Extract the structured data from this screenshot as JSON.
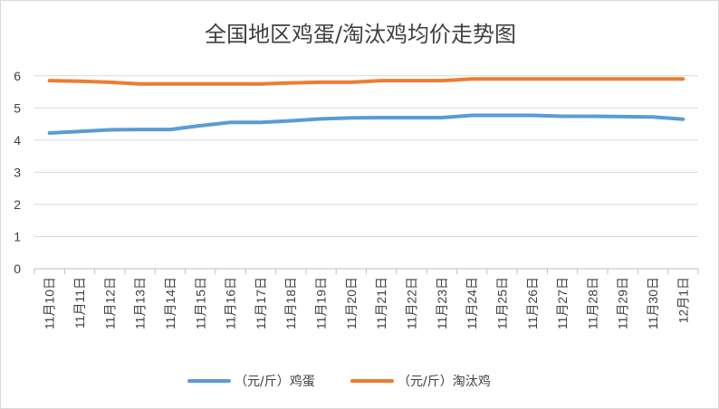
{
  "chart_data": {
    "type": "line",
    "title": "全国地区鸡蛋/淘汰鸡均价走势图",
    "xlabel": "",
    "ylabel": "",
    "ylim": [
      0,
      6.5
    ],
    "yticks": [
      0,
      1,
      2,
      3,
      4,
      5,
      6
    ],
    "grid": "horizontal",
    "legend_position": "bottom",
    "categories": [
      "11月10日",
      "11月11日",
      "11月12日",
      "11月13日",
      "11月14日",
      "11月15日",
      "11月16日",
      "11月17日",
      "11月18日",
      "11月19日",
      "11月20日",
      "11月21日",
      "11月22日",
      "11月23日",
      "11月24日",
      "11月25日",
      "11月26日",
      "11月27日",
      "11月28日",
      "11月29日",
      "11月30日",
      "12月1日"
    ],
    "series": [
      {
        "name": "（元/斤）鸡蛋",
        "color": "#5b9bd5",
        "values": [
          4.22,
          4.27,
          4.32,
          4.33,
          4.33,
          4.45,
          4.55,
          4.55,
          4.6,
          4.66,
          4.69,
          4.7,
          4.7,
          4.7,
          4.77,
          4.77,
          4.77,
          4.74,
          4.74,
          4.73,
          4.72,
          4.65
        ]
      },
      {
        "name": "（元/斤）淘汰鸡",
        "color": "#ed7d31",
        "values": [
          5.85,
          5.83,
          5.8,
          5.75,
          5.75,
          5.75,
          5.75,
          5.75,
          5.78,
          5.8,
          5.8,
          5.85,
          5.85,
          5.85,
          5.9,
          5.9,
          5.9,
          5.9,
          5.9,
          5.9,
          5.9,
          5.9
        ]
      }
    ]
  }
}
